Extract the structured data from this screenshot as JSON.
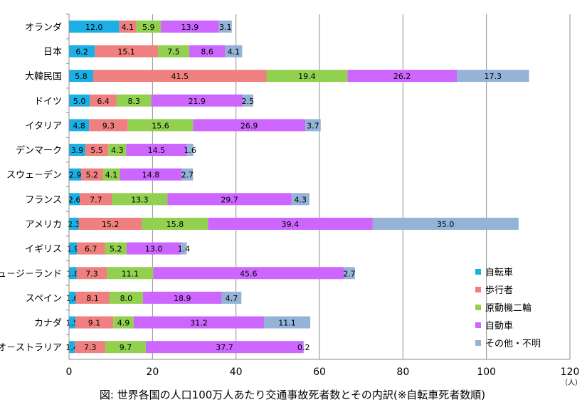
{
  "chart_data": {
    "type": "bar",
    "orientation": "horizontal",
    "stacked": true,
    "categories": [
      "オランダ",
      "日本",
      "大韓民国",
      "ドイツ",
      "イタリア",
      "デンマーク",
      "スウェーデン",
      "フランス",
      "アメリカ",
      "イギリス",
      "ニュージーランド",
      "スペイン",
      "カナダ",
      "オーストラリア"
    ],
    "series": [
      {
        "name": "自転車",
        "color": "#1ab0e6",
        "values": [
          12.0,
          6.2,
          5.8,
          5.0,
          4.8,
          3.9,
          2.9,
          2.6,
          2.3,
          1.9,
          1.8,
          1.6,
          1.5,
          1.4
        ]
      },
      {
        "name": "歩行者",
        "color": "#f08080",
        "values": [
          4.1,
          15.1,
          41.5,
          6.4,
          9.3,
          5.5,
          5.2,
          7.7,
          15.2,
          6.7,
          7.3,
          8.1,
          9.1,
          7.3
        ]
      },
      {
        "name": "原動機二輪",
        "color": "#92d050",
        "values": [
          5.9,
          7.5,
          19.4,
          8.3,
          15.6,
          4.3,
          4.1,
          13.3,
          15.8,
          5.2,
          11.1,
          8.0,
          4.9,
          9.7
        ]
      },
      {
        "name": "自動車",
        "color": "#cc66ff",
        "values": [
          13.9,
          8.6,
          26.2,
          21.9,
          26.9,
          14.5,
          14.8,
          29.7,
          39.4,
          13.0,
          45.6,
          18.9,
          31.2,
          37.7
        ]
      },
      {
        "name": "その他・不明",
        "color": "#95b3d7",
        "values": [
          3.1,
          4.1,
          17.3,
          2.5,
          3.7,
          1.6,
          2.7,
          4.3,
          35.0,
          1.4,
          2.7,
          4.7,
          11.1,
          0.2
        ]
      }
    ],
    "value_labels": [
      [
        "12.0",
        "4.1",
        "5.9",
        "13.9",
        "3.1"
      ],
      [
        "6.2",
        "15.1",
        "7.5",
        "8.6",
        "4.1"
      ],
      [
        "5.8",
        "41.5",
        "19.4",
        "26.2",
        "17.3"
      ],
      [
        "5.0",
        "6.4",
        "8.3",
        "21.9",
        "2.5"
      ],
      [
        "4.8",
        "9.3",
        "15.6",
        "26.9",
        "3.7"
      ],
      [
        "3.9",
        "5.5",
        "4.3",
        "14.5",
        "1.6"
      ],
      [
        "2.9",
        "5.2",
        "4.1",
        "14.8",
        "2.7"
      ],
      [
        "2.6",
        "7.7",
        "13.3",
        "29.7",
        "4.3"
      ],
      [
        "2.3",
        "15.2",
        "15.8",
        "39.4",
        "35.0"
      ],
      [
        "1.9",
        "6.7",
        "5.2",
        "13.0",
        "1.4"
      ],
      [
        "1.8",
        "7.3",
        "11.1",
        "45.6",
        "2.7"
      ],
      [
        "1.6",
        "8.1",
        "8.0",
        "18.9",
        "4.7"
      ],
      [
        "1.5",
        "9.1",
        "4.9",
        "31.2",
        "11.1"
      ],
      [
        "1.4",
        "7.3",
        "9.7",
        "37.7",
        "0.2"
      ]
    ],
    "category_labels": [
      "オランダ",
      "日本",
      "大韓民国",
      "ドイツ",
      "イタリア",
      "デンマーク",
      "スウェ－デン",
      "フランス",
      "アメリカ",
      "イギリス",
      "ニュ－ジ－ランド",
      "スペイン",
      "カナダ",
      "オ－ストラリア"
    ],
    "xlim": [
      0,
      120
    ],
    "xticks": [
      0,
      20,
      40,
      60,
      80,
      100,
      120
    ],
    "xlabel": "（人）",
    "title": "図: 世界各国の人口100万人あたり交通事故死者数とその内訳(※自転車死者数順)",
    "grid": true,
    "legend_position": "bottom-right"
  }
}
